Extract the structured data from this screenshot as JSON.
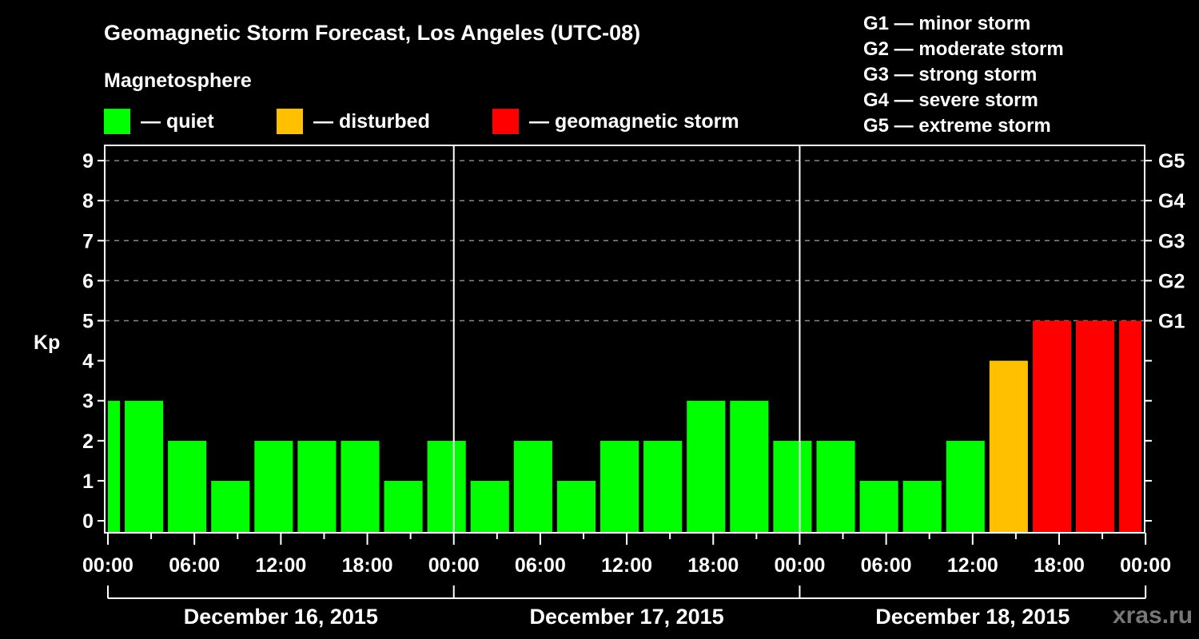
{
  "title": "Geomagnetic Storm Forecast, Los Angeles (UTC-08)",
  "subtitle": "Magnetosphere",
  "legend": [
    {
      "label": "— quiet",
      "color": "#00ff00"
    },
    {
      "label": "— disturbed",
      "color": "#ffc000"
    },
    {
      "label": "— geomagnetic storm",
      "color": "#ff0000"
    }
  ],
  "g_scale": [
    "G1 — minor storm",
    "G2 — moderate storm",
    "G3 — strong storm",
    "G4 — severe storm",
    "G5 — extreme storm"
  ],
  "watermark": "xras.ru",
  "chart_data": {
    "type": "bar",
    "title": "Geomagnetic Storm Forecast, Los Angeles (UTC-08)",
    "ylabel": "Kp",
    "ylim": [
      0,
      9
    ],
    "yticks": [
      0,
      1,
      2,
      3,
      4,
      5,
      6,
      7,
      8,
      9
    ],
    "right_axis_labels": [
      {
        "kp": 5,
        "label": "G1"
      },
      {
        "kp": 6,
        "label": "G2"
      },
      {
        "kp": 7,
        "label": "G3"
      },
      {
        "kp": 8,
        "label": "G4"
      },
      {
        "kp": 9,
        "label": "G5"
      }
    ],
    "xtick_labels": [
      "00:00",
      "06:00",
      "12:00",
      "18:00",
      "00:00",
      "06:00",
      "12:00",
      "18:00",
      "00:00",
      "06:00",
      "12:00",
      "18:00",
      "00:00"
    ],
    "date_labels": [
      "December 16, 2015",
      "December 17, 2015",
      "December 18, 2015"
    ],
    "grid": "dashed horizontal at Kp 5-9",
    "bars": [
      {
        "start_h": 0,
        "end_h": 1,
        "kp": 3,
        "state": "quiet"
      },
      {
        "start_h": 1,
        "end_h": 4,
        "kp": 3,
        "state": "quiet"
      },
      {
        "start_h": 4,
        "end_h": 7,
        "kp": 2,
        "state": "quiet"
      },
      {
        "start_h": 7,
        "end_h": 10,
        "kp": 1,
        "state": "quiet"
      },
      {
        "start_h": 10,
        "end_h": 13,
        "kp": 2,
        "state": "quiet"
      },
      {
        "start_h": 13,
        "end_h": 16,
        "kp": 2,
        "state": "quiet"
      },
      {
        "start_h": 16,
        "end_h": 19,
        "kp": 2,
        "state": "quiet"
      },
      {
        "start_h": 19,
        "end_h": 22,
        "kp": 1,
        "state": "quiet"
      },
      {
        "start_h": 22,
        "end_h": 25,
        "kp": 2,
        "state": "quiet"
      },
      {
        "start_h": 25,
        "end_h": 28,
        "kp": 1,
        "state": "quiet"
      },
      {
        "start_h": 28,
        "end_h": 31,
        "kp": 2,
        "state": "quiet"
      },
      {
        "start_h": 31,
        "end_h": 34,
        "kp": 1,
        "state": "quiet"
      },
      {
        "start_h": 34,
        "end_h": 37,
        "kp": 2,
        "state": "quiet"
      },
      {
        "start_h": 37,
        "end_h": 40,
        "kp": 2,
        "state": "quiet"
      },
      {
        "start_h": 40,
        "end_h": 43,
        "kp": 3,
        "state": "quiet"
      },
      {
        "start_h": 43,
        "end_h": 46,
        "kp": 3,
        "state": "quiet"
      },
      {
        "start_h": 46,
        "end_h": 49,
        "kp": 2,
        "state": "quiet"
      },
      {
        "start_h": 49,
        "end_h": 52,
        "kp": 2,
        "state": "quiet"
      },
      {
        "start_h": 52,
        "end_h": 55,
        "kp": 1,
        "state": "quiet"
      },
      {
        "start_h": 55,
        "end_h": 58,
        "kp": 1,
        "state": "quiet"
      },
      {
        "start_h": 58,
        "end_h": 61,
        "kp": 2,
        "state": "quiet"
      },
      {
        "start_h": 61,
        "end_h": 64,
        "kp": 4,
        "state": "disturbed"
      },
      {
        "start_h": 64,
        "end_h": 67,
        "kp": 5,
        "state": "storm"
      },
      {
        "start_h": 67,
        "end_h": 70,
        "kp": 5,
        "state": "storm"
      },
      {
        "start_h": 70,
        "end_h": 72,
        "kp": 5,
        "state": "storm"
      }
    ],
    "colors": {
      "quiet": "#00ff00",
      "disturbed": "#ffc000",
      "storm": "#ff0000"
    }
  }
}
